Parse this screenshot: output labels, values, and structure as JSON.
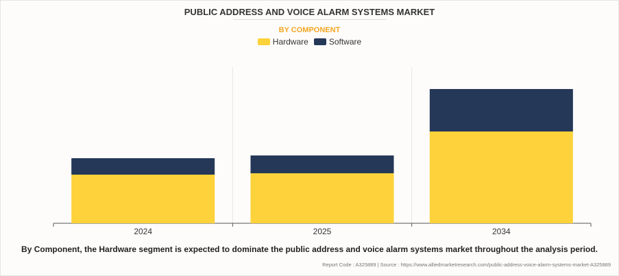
{
  "title": "PUBLIC ADDRESS AND VOICE ALARM SYSTEMS MARKET",
  "subtitle": "BY COMPONENT",
  "caption": "By Component, the Hardware segment is expected to dominate the public address and voice alarm systems market throughout the analysis period.",
  "source": "Report Code : A325889  |  Source : https://www.alliedmarketresearch.com/public-address-voice-alarm-systems-market-A325889",
  "colors": {
    "Hardware": "#fdd23a",
    "Software": "#253858"
  },
  "chart_data": {
    "type": "bar",
    "stacked": true,
    "title": "PUBLIC ADDRESS AND VOICE ALARM SYSTEMS MARKET",
    "subtitle": "BY COMPONENT",
    "categories": [
      "2024",
      "2025",
      "2034"
    ],
    "series": [
      {
        "name": "Hardware",
        "values": [
          71,
          73,
          134
        ]
      },
      {
        "name": "Software",
        "values": [
          24,
          26,
          62
        ]
      }
    ],
    "ylim": [
      0,
      228
    ],
    "yaxis_visible": false,
    "grid": false,
    "legend": "top-center"
  }
}
